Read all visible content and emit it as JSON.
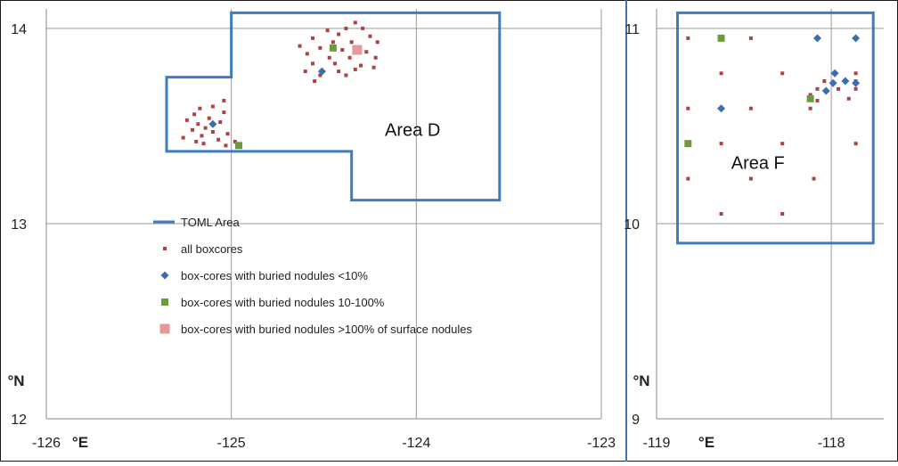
{
  "colors": {
    "toml": "#3C7CBF",
    "all_boxcores": "#A94442",
    "buried_lt10": "#3A6EB0",
    "buried_10_100": "#6E9A3E",
    "buried_gt100": "#E49A98",
    "grid": "#9A9A9A",
    "frame": "#1a1a1a",
    "divider": "#4A6FA5"
  },
  "chart_data": [
    {
      "type": "scatter",
      "panel": "left",
      "xlim": [
        -126,
        -123
      ],
      "ylim": [
        12,
        14.1
      ],
      "x_ticks": [
        -126,
        -125,
        -124,
        -123
      ],
      "y_ticks": [
        12,
        13,
        14
      ],
      "xlabel": "°E",
      "ylabel": "°N",
      "grid": true,
      "area_label": {
        "text": "Area D",
        "x": -124.02,
        "y": 13.45
      },
      "toml_polygon": [
        [
          -125.0,
          14.08
        ],
        [
          -123.55,
          14.08
        ],
        [
          -123.55,
          13.12
        ],
        [
          -124.35,
          13.12
        ],
        [
          -124.35,
          13.37
        ],
        [
          -125.35,
          13.37
        ],
        [
          -125.35,
          13.75
        ],
        [
          -125.0,
          13.75
        ]
      ],
      "legend": {
        "placement": "bottom-left",
        "items": [
          {
            "key": "toml",
            "label": "TOML Area",
            "marker": "line"
          },
          {
            "key": "all_boxcores",
            "label": "all boxcores",
            "marker": "dot"
          },
          {
            "key": "buried_lt10",
            "label": "box-cores with buried nodules <10%",
            "marker": "diamond"
          },
          {
            "key": "buried_10_100",
            "label": "box-cores with buried nodules 10-100%",
            "marker": "square"
          },
          {
            "key": "buried_gt100",
            "label": "box-cores with buried nodules >100% of surface nodules",
            "marker": "bigsquare"
          }
        ]
      },
      "series": [
        {
          "key": "all_boxcores",
          "marker": "dot",
          "points": [
            [
              -124.33,
              14.03
            ],
            [
              -124.38,
              14.0
            ],
            [
              -124.29,
              14.0
            ],
            [
              -124.48,
              13.99
            ],
            [
              -124.42,
              13.97
            ],
            [
              -124.25,
              13.96
            ],
            [
              -124.56,
              13.95
            ],
            [
              -124.45,
              13.93
            ],
            [
              -124.35,
              13.93
            ],
            [
              -124.21,
              13.93
            ],
            [
              -124.63,
              13.91
            ],
            [
              -124.52,
              13.9
            ],
            [
              -124.4,
              13.89
            ],
            [
              -124.27,
              13.88
            ],
            [
              -124.59,
              13.87
            ],
            [
              -124.47,
              13.85
            ],
            [
              -124.36,
              13.85
            ],
            [
              -124.22,
              13.85
            ],
            [
              -124.56,
              13.82
            ],
            [
              -124.44,
              13.82
            ],
            [
              -124.3,
              13.81
            ],
            [
              -124.6,
              13.78
            ],
            [
              -124.42,
              13.78
            ],
            [
              -124.33,
              13.79
            ],
            [
              -124.23,
              13.8
            ],
            [
              -124.52,
              13.76
            ],
            [
              -124.38,
              13.76
            ],
            [
              -124.55,
              13.73
            ],
            [
              -125.04,
              13.63
            ],
            [
              -125.1,
              13.6
            ],
            [
              -125.17,
              13.59
            ],
            [
              -125.04,
              13.57
            ],
            [
              -125.2,
              13.56
            ],
            [
              -125.12,
              13.54
            ],
            [
              -125.24,
              13.53
            ],
            [
              -125.06,
              13.52
            ],
            [
              -125.18,
              13.51
            ],
            [
              -125.14,
              13.49
            ],
            [
              -125.21,
              13.48
            ],
            [
              -125.1,
              13.47
            ],
            [
              -125.02,
              13.46
            ],
            [
              -125.16,
              13.45
            ],
            [
              -125.26,
              13.44
            ],
            [
              -125.07,
              13.43
            ],
            [
              -124.98,
              13.42
            ],
            [
              -125.19,
              13.42
            ],
            [
              -125.15,
              13.41
            ],
            [
              -125.03,
              13.4
            ]
          ]
        },
        {
          "key": "buried_lt10",
          "marker": "diamond",
          "points": [
            [
              -124.51,
              13.78
            ],
            [
              -125.1,
              13.51
            ]
          ]
        },
        {
          "key": "buried_10_100",
          "marker": "square",
          "points": [
            [
              -124.45,
              13.9
            ],
            [
              -124.96,
              13.4
            ]
          ]
        },
        {
          "key": "buried_gt100",
          "marker": "bigsquare",
          "points": [
            [
              -124.32,
              13.89
            ]
          ]
        }
      ]
    },
    {
      "type": "scatter",
      "panel": "right",
      "xlim": [
        -119,
        -117.7
      ],
      "ylim": [
        9,
        11.1
      ],
      "x_ticks": [
        -119,
        -118
      ],
      "y_ticks": [
        9,
        10,
        11
      ],
      "xlabel": "°E",
      "ylabel": "°N",
      "grid": true,
      "area_label": {
        "text": "Area F",
        "x": -118.42,
        "y": 10.28
      },
      "toml_polygon": [
        [
          -118.88,
          11.08
        ],
        [
          -117.76,
          11.08
        ],
        [
          -117.76,
          9.9
        ],
        [
          -118.88,
          9.9
        ]
      ],
      "series": [
        {
          "key": "all_boxcores",
          "marker": "dot",
          "points": [
            [
              -118.82,
              10.95
            ],
            [
              -118.46,
              10.95
            ],
            [
              -118.63,
              10.77
            ],
            [
              -118.28,
              10.77
            ],
            [
              -117.86,
              10.77
            ],
            [
              -117.86,
              10.73
            ],
            [
              -118.04,
              10.73
            ],
            [
              -117.86,
              10.69
            ],
            [
              -117.96,
              10.69
            ],
            [
              -118.08,
              10.69
            ],
            [
              -118.12,
              10.66
            ],
            [
              -117.9,
              10.64
            ],
            [
              -118.08,
              10.63
            ],
            [
              -118.82,
              10.59
            ],
            [
              -118.46,
              10.59
            ],
            [
              -118.12,
              10.59
            ],
            [
              -118.63,
              10.41
            ],
            [
              -118.28,
              10.41
            ],
            [
              -117.86,
              10.41
            ],
            [
              -118.82,
              10.23
            ],
            [
              -118.46,
              10.23
            ],
            [
              -118.1,
              10.23
            ],
            [
              -118.63,
              10.05
            ],
            [
              -118.28,
              10.05
            ]
          ]
        },
        {
          "key": "buried_lt10",
          "marker": "diamond",
          "points": [
            [
              -118.08,
              10.95
            ],
            [
              -117.86,
              10.95
            ],
            [
              -117.98,
              10.77
            ],
            [
              -117.92,
              10.73
            ],
            [
              -117.99,
              10.72
            ],
            [
              -117.86,
              10.72
            ],
            [
              -118.03,
              10.68
            ],
            [
              -118.63,
              10.59
            ]
          ]
        },
        {
          "key": "buried_10_100",
          "marker": "square",
          "points": [
            [
              -118.63,
              10.95
            ],
            [
              -118.12,
              10.64
            ],
            [
              -118.82,
              10.41
            ]
          ]
        }
      ]
    }
  ]
}
